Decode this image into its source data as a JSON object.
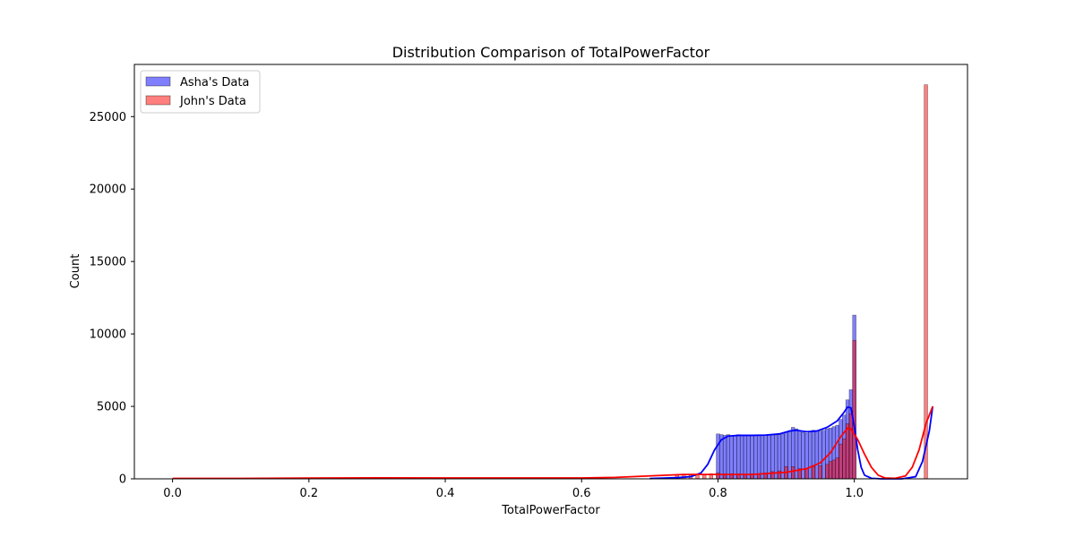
{
  "chart_data": {
    "type": "histogram",
    "title": "Distribution Comparison of TotalPowerFactor",
    "xlabel": "TotalPowerFactor",
    "ylabel": "Count",
    "xlim": [
      -0.056,
      1.166
    ],
    "ylim": [
      0,
      28600
    ],
    "xticks": [
      0.0,
      0.2,
      0.4,
      0.6,
      0.8,
      1.0
    ],
    "xtick_labels": [
      "0.0",
      "0.2",
      "0.4",
      "0.6",
      "0.8",
      "1.0"
    ],
    "yticks": [
      0,
      5000,
      10000,
      15000,
      20000,
      25000
    ],
    "ytick_labels": [
      "0",
      "5000",
      "10000",
      "15000",
      "20000",
      "25000"
    ],
    "grid": false,
    "legend_position": "top-left",
    "series": [
      {
        "name": "Asha's Data",
        "fill_color": "#0000ff",
        "line_color": "#0000ff",
        "bars": [
          [
            0.8,
            3100
          ],
          [
            0.805,
            3050
          ],
          [
            0.81,
            3000
          ],
          [
            0.815,
            3050
          ],
          [
            0.82,
            2950
          ],
          [
            0.825,
            3000
          ],
          [
            0.83,
            3050
          ],
          [
            0.835,
            3000
          ],
          [
            0.84,
            2980
          ],
          [
            0.845,
            3020
          ],
          [
            0.85,
            2990
          ],
          [
            0.855,
            3000
          ],
          [
            0.86,
            3010
          ],
          [
            0.865,
            2990
          ],
          [
            0.87,
            3000
          ],
          [
            0.875,
            3020
          ],
          [
            0.88,
            3050
          ],
          [
            0.885,
            3000
          ],
          [
            0.89,
            3050
          ],
          [
            0.895,
            3100
          ],
          [
            0.9,
            3200
          ],
          [
            0.905,
            3250
          ],
          [
            0.91,
            3550
          ],
          [
            0.915,
            3450
          ],
          [
            0.92,
            3300
          ],
          [
            0.925,
            3200
          ],
          [
            0.93,
            3150
          ],
          [
            0.935,
            3250
          ],
          [
            0.94,
            3350
          ],
          [
            0.945,
            3300
          ],
          [
            0.95,
            3300
          ],
          [
            0.955,
            3350
          ],
          [
            0.96,
            3450
          ],
          [
            0.965,
            3500
          ],
          [
            0.97,
            3600
          ],
          [
            0.975,
            3700
          ],
          [
            0.98,
            4100
          ],
          [
            0.985,
            4400
          ],
          [
            0.99,
            5450
          ],
          [
            0.995,
            6150
          ],
          [
            1.0,
            11300
          ]
        ],
        "kde": [
          [
            0.7,
            20
          ],
          [
            0.74,
            80
          ],
          [
            0.76,
            150
          ],
          [
            0.775,
            400
          ],
          [
            0.785,
            1000
          ],
          [
            0.795,
            2000
          ],
          [
            0.805,
            2700
          ],
          [
            0.815,
            2950
          ],
          [
            0.83,
            3000
          ],
          [
            0.85,
            3000
          ],
          [
            0.87,
            3020
          ],
          [
            0.89,
            3100
          ],
          [
            0.905,
            3300
          ],
          [
            0.915,
            3350
          ],
          [
            0.93,
            3250
          ],
          [
            0.945,
            3300
          ],
          [
            0.96,
            3550
          ],
          [
            0.975,
            4000
          ],
          [
            0.985,
            4600
          ],
          [
            0.99,
            4950
          ],
          [
            0.995,
            4900
          ],
          [
            1.0,
            3600
          ],
          [
            1.005,
            2000
          ],
          [
            1.01,
            800
          ],
          [
            1.015,
            250
          ],
          [
            1.025,
            40
          ],
          [
            1.04,
            0
          ],
          [
            1.07,
            0
          ],
          [
            1.09,
            150
          ],
          [
            1.1,
            1200
          ],
          [
            1.11,
            3300
          ],
          [
            1.115,
            5000
          ]
        ]
      },
      {
        "name": "John's Data",
        "fill_color": "#ff0000",
        "line_color": "#ff0000",
        "bars": [
          [
            0.74,
            300
          ],
          [
            0.75,
            300
          ],
          [
            0.76,
            300
          ],
          [
            0.77,
            300
          ],
          [
            0.78,
            300
          ],
          [
            0.79,
            350
          ],
          [
            0.8,
            400
          ],
          [
            0.81,
            350
          ],
          [
            0.82,
            350
          ],
          [
            0.83,
            350
          ],
          [
            0.84,
            300
          ],
          [
            0.85,
            350
          ],
          [
            0.86,
            350
          ],
          [
            0.87,
            400
          ],
          [
            0.88,
            500
          ],
          [
            0.89,
            550
          ],
          [
            0.9,
            850
          ],
          [
            0.91,
            850
          ],
          [
            0.92,
            700
          ],
          [
            0.93,
            700
          ],
          [
            0.94,
            850
          ],
          [
            0.95,
            900
          ],
          [
            0.96,
            1000
          ],
          [
            0.965,
            1200
          ],
          [
            0.97,
            1300
          ],
          [
            0.975,
            1450
          ],
          [
            0.98,
            2400
          ],
          [
            0.985,
            2750
          ],
          [
            0.99,
            3800
          ],
          [
            0.995,
            4500
          ],
          [
            1.0,
            9550
          ],
          [
            1.105,
            27200
          ]
        ],
        "kde": [
          [
            0.0,
            30
          ],
          [
            0.1,
            30
          ],
          [
            0.2,
            50
          ],
          [
            0.3,
            70
          ],
          [
            0.4,
            60
          ],
          [
            0.5,
            60
          ],
          [
            0.6,
            60
          ],
          [
            0.65,
            100
          ],
          [
            0.7,
            200
          ],
          [
            0.75,
            300
          ],
          [
            0.8,
            300
          ],
          [
            0.85,
            300
          ],
          [
            0.9,
            450
          ],
          [
            0.93,
            700
          ],
          [
            0.95,
            1100
          ],
          [
            0.965,
            1800
          ],
          [
            0.98,
            2900
          ],
          [
            0.99,
            3500
          ],
          [
            0.995,
            3450
          ],
          [
            1.005,
            2700
          ],
          [
            1.015,
            1700
          ],
          [
            1.025,
            800
          ],
          [
            1.035,
            250
          ],
          [
            1.045,
            60
          ],
          [
            1.06,
            40
          ],
          [
            1.075,
            200
          ],
          [
            1.085,
            800
          ],
          [
            1.095,
            2000
          ],
          [
            1.105,
            3800
          ],
          [
            1.115,
            5000
          ]
        ]
      }
    ]
  }
}
